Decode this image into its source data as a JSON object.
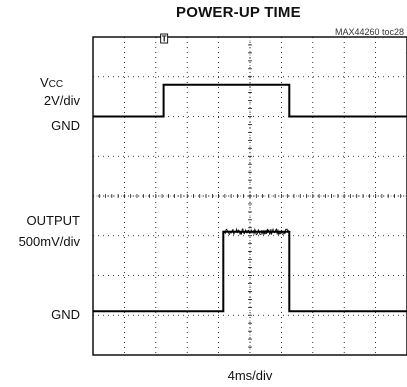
{
  "chart_data": {
    "type": "line",
    "title": "POWER-UP TIME",
    "chart_id": "MAX44260 toc28",
    "xlabel": "4ms/div",
    "x_divisions": 10,
    "y_divisions": 8,
    "grid": true,
    "trigger_marker": "T",
    "channels": [
      {
        "label_main": "V",
        "label_sub": "CC",
        "scale": "2V/div",
        "ground_label": "GND",
        "ground_div": 2,
        "high_div": 0.8,
        "segments": [
          [
            0,
            0
          ],
          [
            2.25,
            0
          ],
          [
            2.25,
            0.8
          ],
          [
            6.25,
            0.8
          ],
          [
            6.25,
            0
          ],
          [
            10,
            0
          ]
        ],
        "noisy_segment": null
      },
      {
        "label_main": "OUTPUT",
        "scale": "500mV/div",
        "ground_label": "GND",
        "ground_div": 6.9,
        "high_div": 2.0,
        "segments": [
          [
            0,
            0
          ],
          [
            4.15,
            0
          ],
          [
            4.15,
            2.0
          ],
          [
            6.25,
            2.0
          ],
          [
            6.25,
            0
          ],
          [
            10,
            0
          ]
        ],
        "noisy_segment": [
          4.15,
          6.25
        ]
      }
    ]
  }
}
